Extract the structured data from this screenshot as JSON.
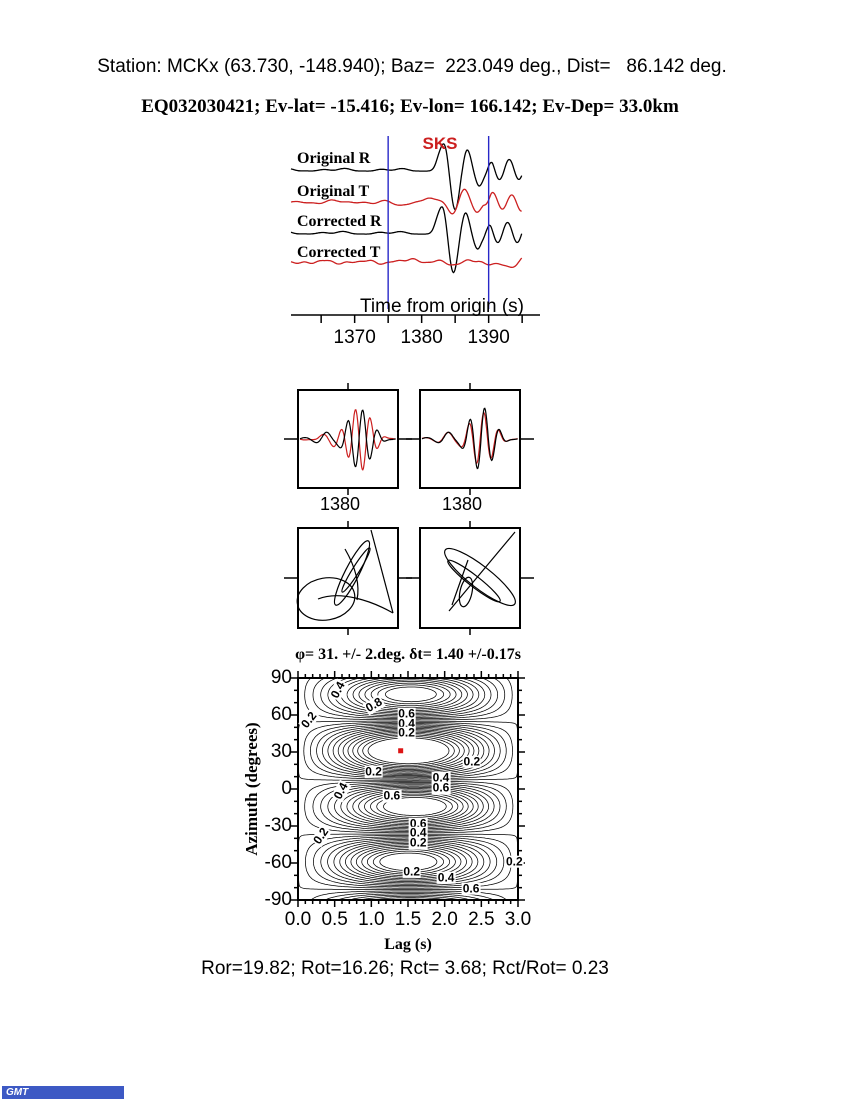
{
  "header": {
    "line1": "Station: MCKx (63.730, -148.940); Baz=  223.049 deg., Dist=   86.142 deg.",
    "line2": "EQ032030421; Ev-lat= -15.416; Ev-lon= 166.142; Ev-Dep= 33.0km"
  },
  "colors": {
    "trace_black": "#000000",
    "trace_red": "#cc2020",
    "window_blue": "#2828c8",
    "marker_red": "#dd1414",
    "stamp_blue": "#3d59c4"
  },
  "seismogram": {
    "phase_label": "SKS",
    "traces": [
      {
        "label": "Original R",
        "color": "trace_black"
      },
      {
        "label": "Original T",
        "color": "trace_red"
      },
      {
        "label": "Corrected R",
        "color": "trace_black"
      },
      {
        "label": "Corrected T",
        "color": "trace_red"
      }
    ],
    "time_axis": {
      "label": "Time from origin (s)",
      "ticks": [
        {
          "t": 1370,
          "label": "1370"
        },
        {
          "t": 1380,
          "label": "1380"
        },
        {
          "t": 1390,
          "label": "1390"
        }
      ],
      "minor_step": 5,
      "range": [
        1360.5,
        1398
      ],
      "window_lines": [
        1375,
        1390
      ]
    }
  },
  "pair_panels": {
    "left_tick_label": "1380",
    "right_tick_label": "1380"
  },
  "chart_data": {
    "type": "heatmap",
    "title": "φ= 31. +/- 2.deg. δt= 1.40 +/-0.17s",
    "xlabel": "Lag (s)",
    "ylabel": "Azimuth (degrees)",
    "xlim": [
      0,
      3
    ],
    "ylim": [
      -90,
      90
    ],
    "grid": false,
    "x_ticks": [
      {
        "v": 0.0,
        "label": "0.0"
      },
      {
        "v": 0.5,
        "label": "0.5"
      },
      {
        "v": 1.0,
        "label": "1.0"
      },
      {
        "v": 1.5,
        "label": "1.5"
      },
      {
        "v": 2.0,
        "label": "2.0"
      },
      {
        "v": 2.5,
        "label": "2.5"
      },
      {
        "v": 3.0,
        "label": "3.0"
      }
    ],
    "y_ticks": [
      {
        "v": 90,
        "label": "90"
      },
      {
        "v": 60,
        "label": "60"
      },
      {
        "v": 30,
        "label": "30"
      },
      {
        "v": 0,
        "label": "0"
      },
      {
        "v": -30,
        "label": "-30"
      },
      {
        "v": -60,
        "label": "-60"
      },
      {
        "v": -90,
        "label": "-90"
      }
    ],
    "best_fit": {
      "azimuth_deg": 31,
      "azimuth_err_deg": 2,
      "lag_s": 1.4,
      "lag_err_s": 0.17
    },
    "extrema": [
      {
        "lag": 1.45,
        "az": 31,
        "type": "min"
      },
      {
        "lag": 1.6,
        "az": 78,
        "type": "max"
      },
      {
        "lag": 1.85,
        "az": -14,
        "type": "max"
      },
      {
        "lag": 1.45,
        "az": -59,
        "type": "min"
      }
    ],
    "labeled_levels": [
      0.2,
      0.4,
      0.6,
      0.8
    ],
    "contour_labels": [
      {
        "v": "0.4",
        "x": 0.55,
        "y": 80,
        "rot": -62
      },
      {
        "v": "0.2",
        "x": 0.15,
        "y": 56,
        "rot": -52
      },
      {
        "v": "0.8",
        "x": 1.03,
        "y": 68,
        "rot": -30
      },
      {
        "v": "0.6",
        "x": 1.48,
        "y": 61,
        "rot": 0
      },
      {
        "v": "0.4",
        "x": 1.48,
        "y": 53,
        "rot": 0
      },
      {
        "v": "0.2",
        "x": 1.48,
        "y": 45.5,
        "rot": 0
      },
      {
        "v": "0.2",
        "x": 1.03,
        "y": 14,
        "rot": 0
      },
      {
        "v": "0.2",
        "x": 2.37,
        "y": 22,
        "rot": 0
      },
      {
        "v": "0.4",
        "x": 1.95,
        "y": 9,
        "rot": 0
      },
      {
        "v": "0.6",
        "x": 1.95,
        "y": 0.5,
        "rot": 0
      },
      {
        "v": "0.4",
        "x": 0.58,
        "y": -2,
        "rot": -62
      },
      {
        "v": "0.6",
        "x": 1.28,
        "y": -6,
        "rot": 0
      },
      {
        "v": "0.6",
        "x": 1.64,
        "y": -28,
        "rot": 0
      },
      {
        "v": "0.4",
        "x": 1.64,
        "y": -36,
        "rot": 0
      },
      {
        "v": "0.2",
        "x": 1.64,
        "y": -44,
        "rot": 0
      },
      {
        "v": "0.2",
        "x": 0.32,
        "y": -38,
        "rot": -55
      },
      {
        "v": "0.2",
        "x": 1.55,
        "y": -67,
        "rot": 0
      },
      {
        "v": "0.4",
        "x": 2.02,
        "y": -72,
        "rot": 0
      },
      {
        "v": "0.6",
        "x": 2.36,
        "y": -81,
        "rot": 0
      },
      {
        "v": "0.2",
        "x": 2.95,
        "y": -59,
        "rot": 0
      }
    ]
  },
  "footer": {
    "stats": "Ror=19.82; Rot=16.26; Rct= 3.68; Rct/Rot= 0.23"
  },
  "stamp": {
    "text": "GMT"
  }
}
